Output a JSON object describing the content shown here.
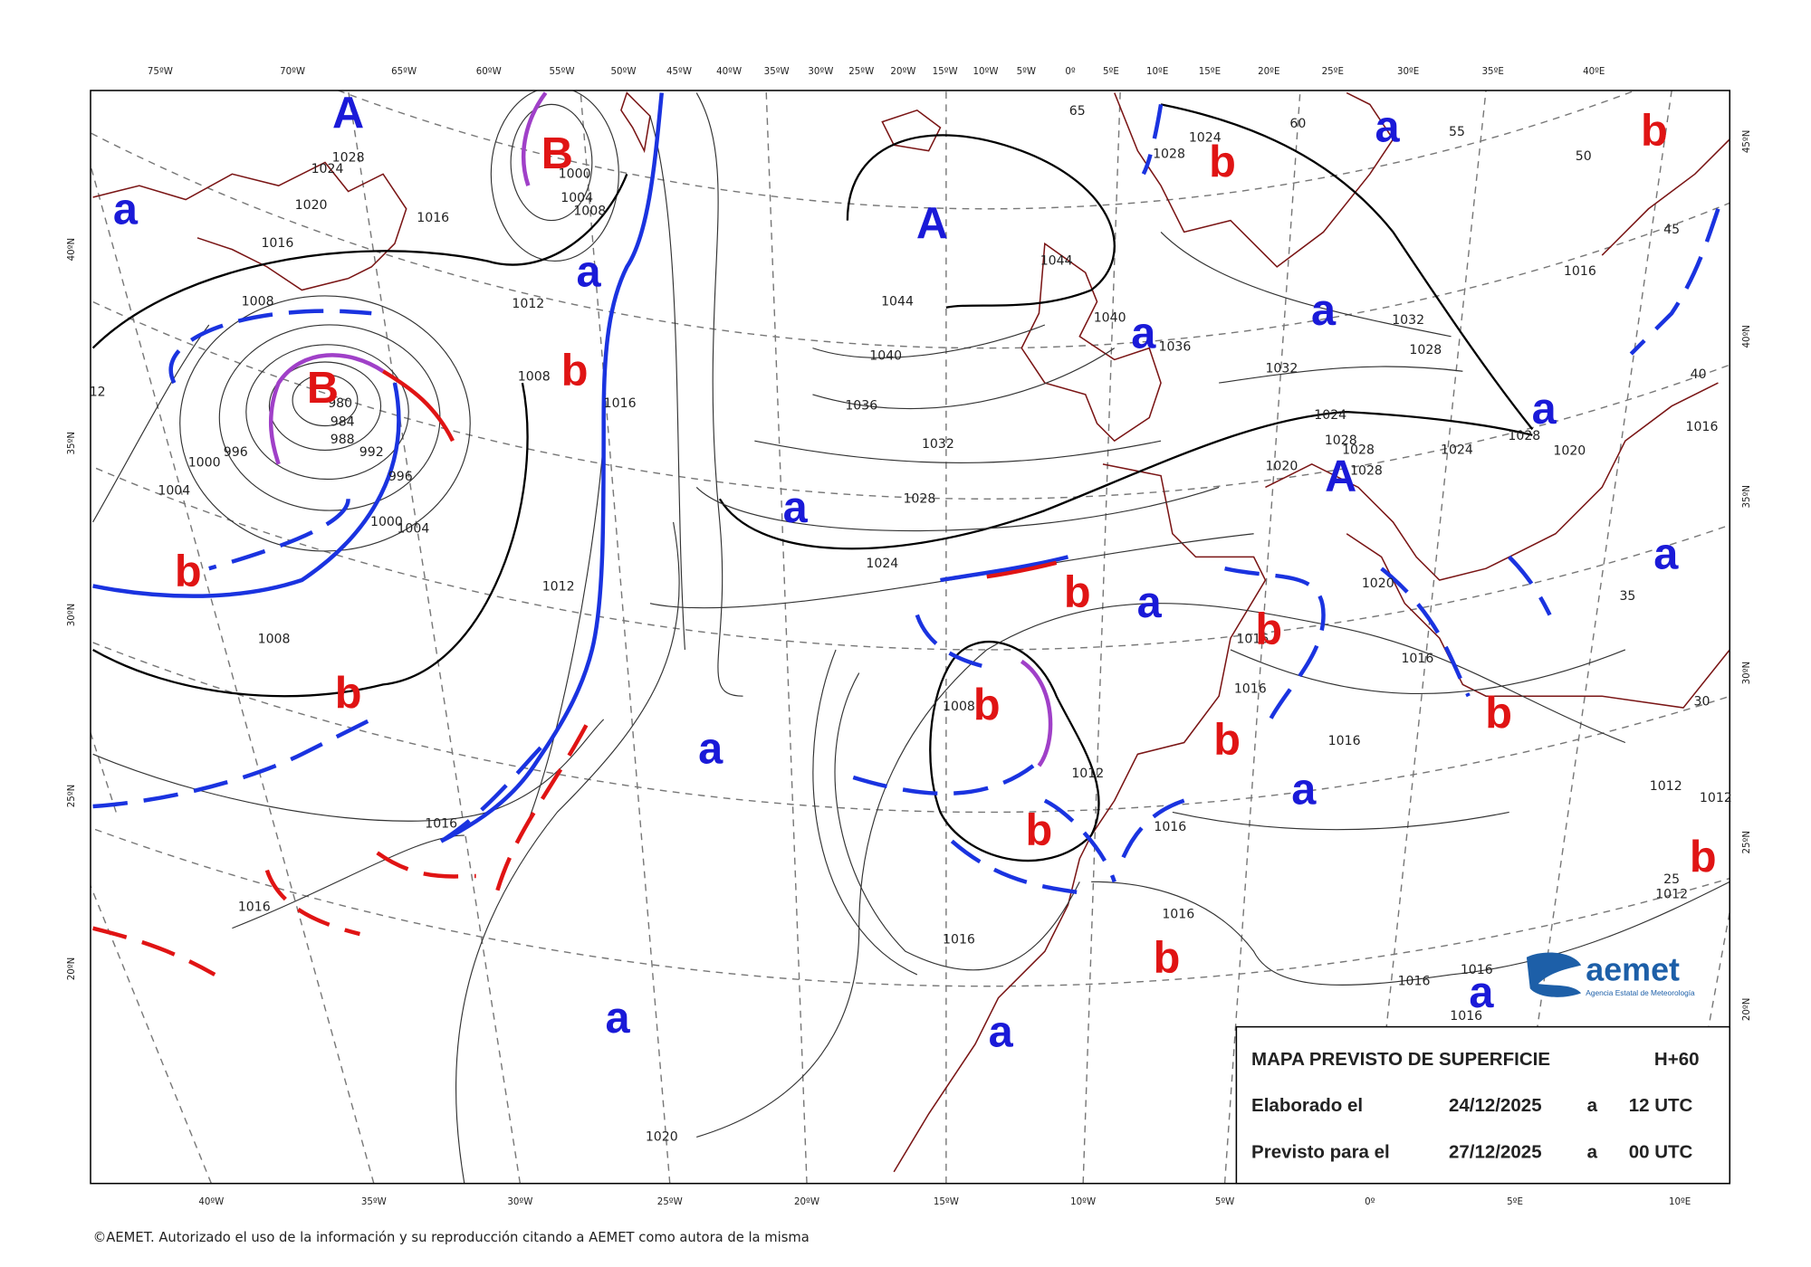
{
  "map": {
    "top_lon_labels": [
      "75ºW",
      "70ºW",
      "65ºW",
      "60ºW",
      "55ºW",
      "50ºW",
      "45ºW",
      "40ºW",
      "35ºW",
      "30ºW",
      "25ºW",
      "20ºW",
      "15ºW",
      "10ºW",
      "5ºW",
      "0º",
      "5ºE",
      "10ºE",
      "15ºE",
      "20ºE",
      "25ºE",
      "30ºE",
      "35ºE",
      "40ºE"
    ],
    "bottom_lon_labels": [
      "40ºW",
      "35ºW",
      "30ºW",
      "25ºW",
      "20ºW",
      "15ºW",
      "10ºW",
      "5ºW",
      "0º",
      "5ºE",
      "10ºE"
    ],
    "left_lat_labels": [
      "40ºN",
      "35ºN",
      "30ºN",
      "25ºN",
      "20ºN"
    ],
    "right_lat_labels": [
      "45ºN",
      "40ºN",
      "35ºN",
      "30ºN",
      "25ºN",
      "20ºN"
    ],
    "center_colors": {
      "high": "#1a1ad8",
      "low": "#e01414"
    },
    "centers": [
      "A",
      "a",
      "B",
      "a",
      "b",
      "B",
      "b",
      "b",
      "A",
      "a",
      "a",
      "a",
      "b",
      "a",
      "b",
      "a",
      "A",
      "a",
      "b",
      "a",
      "b",
      "b",
      "b",
      "b",
      "a",
      "a",
      "b",
      "b",
      "b",
      "a",
      "a",
      "a"
    ],
    "isobar_labels": [
      "1028",
      "1024",
      "1020",
      "1016",
      "1008",
      "1016",
      "1012",
      "1008",
      "1016",
      "1012",
      "1008",
      "1016",
      "1016",
      "1020",
      "1016",
      "1044",
      "1044",
      "1040",
      "1040",
      "1036",
      "1036",
      "1032",
      "1028",
      "1024",
      "1032",
      "1032",
      "1028",
      "1024",
      "1028",
      "1024",
      "1028",
      "1028",
      "1028",
      "1020",
      "1024",
      "1028",
      "1020",
      "1016",
      "1016",
      "1020",
      "1016",
      "1016",
      "1016",
      "1016",
      "1016",
      "1016",
      "1012",
      "1008",
      "1012",
      "1016",
      "1016",
      "1016",
      "1012",
      "1012",
      "996",
      "992",
      "996",
      "1000",
      "1004",
      "1000",
      "1004",
      "984",
      "988",
      "980",
      "1000",
      "1004",
      "1008",
      "12",
      "55",
      "50",
      "45",
      "40",
      "35",
      "30",
      "25",
      "65",
      "60"
    ]
  },
  "info_box": {
    "title": "MAPA PREVISTO DE SUPERFICIE",
    "lead": "H+60",
    "rows": [
      [
        "Elaborado el",
        "24/12/2025",
        "a",
        "12 UTC"
      ],
      [
        "Previsto para el",
        "27/12/2025",
        "a",
        "00 UTC"
      ]
    ]
  },
  "logo": {
    "name": "aemet",
    "subtitle": "Agencia Estatal de Meteorología"
  },
  "copyright": "©AEMET. Autorizado el uso de la información y su reproducción citando a AEMET como autora de la misma"
}
